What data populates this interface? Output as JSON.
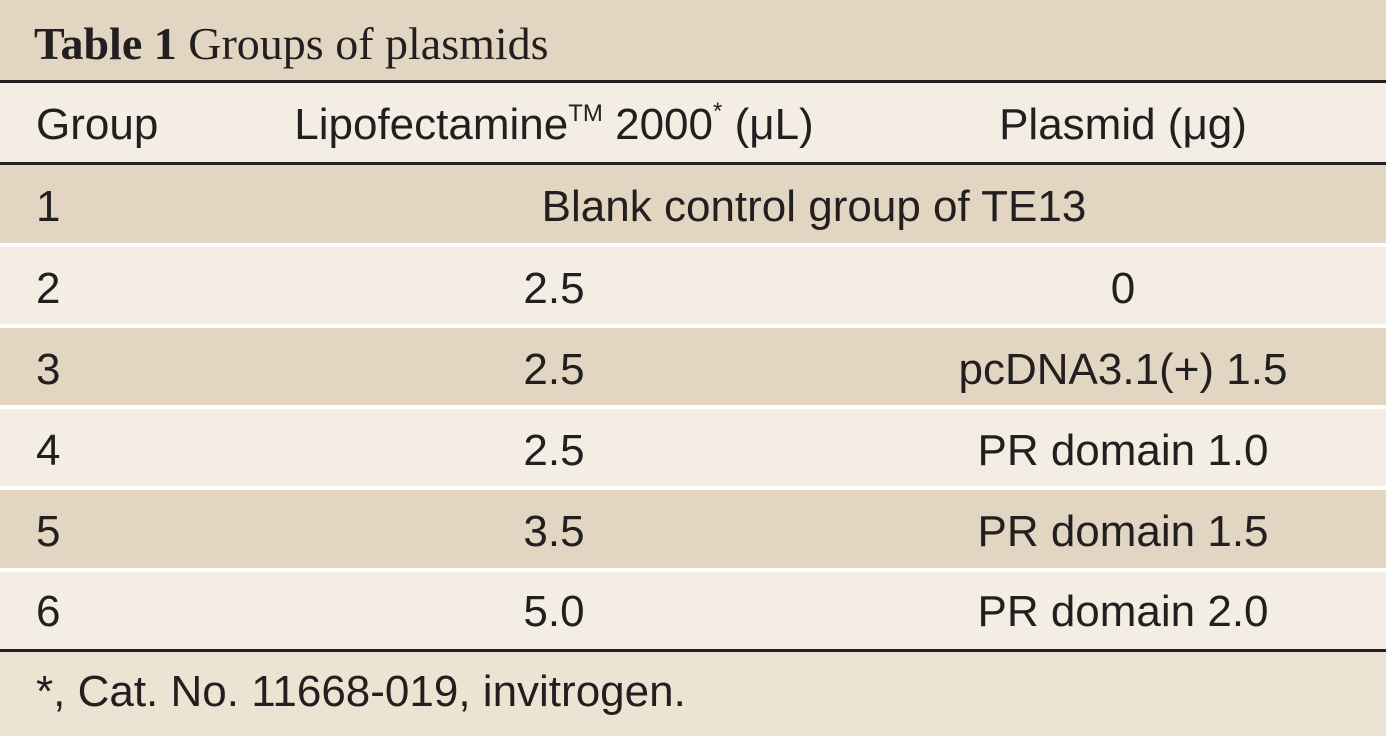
{
  "table": {
    "label": "Table 1",
    "caption": "Groups of plasmids",
    "headers": {
      "group": "Group",
      "lipo_name": "Lipofectamine",
      "lipo_tm": "TM",
      "lipo_num": "2000",
      "lipo_ast": "*",
      "lipo_unit": "(μL)",
      "plasmid": "Plasmid (μg)"
    },
    "span_row": {
      "group": "1",
      "text": "Blank control group of TE13"
    },
    "rows": [
      {
        "group": "2",
        "lipo": "2.5",
        "plasmid": "0"
      },
      {
        "group": "3",
        "lipo": "2.5",
        "plasmid": "pcDNA3.1(+) 1.5"
      },
      {
        "group": "4",
        "lipo": "2.5",
        "plasmid": "PR domain 1.0"
      },
      {
        "group": "5",
        "lipo": "3.5",
        "plasmid": "PR domain 1.5"
      },
      {
        "group": "6",
        "lipo": "5.0",
        "plasmid": "PR domain 2.0"
      }
    ],
    "footnote": "*, Cat. No. 11668-019, invitrogen."
  }
}
